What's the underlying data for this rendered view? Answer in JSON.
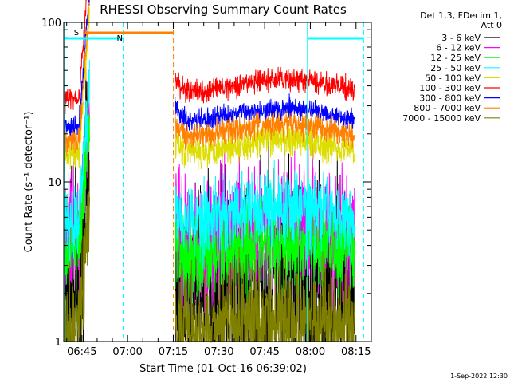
{
  "chart_data": {
    "type": "line",
    "title": "RHESSI Observing Summary Count Rates",
    "xlabel": "Start Time (01-Oct-16 06:39:02)",
    "ylabel": "Count Rate (s⁻¹ detector⁻¹)",
    "yscale": "log",
    "ylim": [
      1,
      100
    ],
    "xlim_minutes": [
      0,
      101
    ],
    "x_ticks": [
      {
        "label": "06:45",
        "minute": 5.97
      },
      {
        "label": "07:00",
        "minute": 20.97
      },
      {
        "label": "07:15",
        "minute": 35.97
      },
      {
        "label": "07:30",
        "minute": 50.97
      },
      {
        "label": "07:45",
        "minute": 65.97
      },
      {
        "label": "08:00",
        "minute": 80.97
      },
      {
        "label": "08:15",
        "minute": 95.97
      }
    ],
    "y_ticks": [
      {
        "label": "1",
        "value": 1
      },
      {
        "label": "10",
        "value": 10
      },
      {
        "label": "100",
        "value": 100
      }
    ],
    "legend_header": [
      "Det 1,3, FDecim 1,",
      "Att 0"
    ],
    "legend_position": "right",
    "series": [
      {
        "name": "3 - 6 keV",
        "color": "#000000",
        "level_before": 2.0,
        "level_after": 2.0,
        "noise": 0.6
      },
      {
        "name": "6 - 12 keV",
        "color": "#ff00ff",
        "level_before": 4.5,
        "level_after": 4.6,
        "noise": 0.35
      },
      {
        "name": "12 - 25 keV",
        "color": "#00ff00",
        "level_before": 3.5,
        "level_after": 3.6,
        "noise": 0.25
      },
      {
        "name": "25 - 50 keV",
        "color": "#00ffff",
        "level_before": 5.8,
        "level_after": 6.0,
        "noise": 0.2
      },
      {
        "name": "50 - 100 keV",
        "color": "#dddd00",
        "level_before": 15,
        "level_after": 16,
        "noise": 0.09
      },
      {
        "name": "100 - 300 keV",
        "color": "#ff0000",
        "level_before": 33,
        "level_after": 38,
        "noise": 0.06
      },
      {
        "name": "300 - 800 keV",
        "color": "#0000ff",
        "level_before": 22,
        "level_after": 25,
        "noise": 0.06
      },
      {
        "name": "800 - 7000 keV",
        "color": "#ff8000",
        "level_before": 18,
        "level_after": 20,
        "noise": 0.07
      },
      {
        "name": "7000 - 15000 keV",
        "color": "#808000",
        "level_before": 1.2,
        "level_after": 1.2,
        "noise": 0.3
      }
    ],
    "gaps_minutes": [
      [
        8.5,
        36.5
      ],
      [
        95.5,
        101
      ]
    ],
    "flags": [
      {
        "label": "S",
        "color": "#ff8000",
        "start_minute": 7.0,
        "end_minute": 36.0
      },
      {
        "label": "N",
        "color": "#00ffff",
        "start_minute": 0.3,
        "end_minute": 19.5
      },
      {
        "label": "",
        "color": "#00ffff",
        "start_minute": 80.0,
        "end_minute": 98.5
      }
    ],
    "vertical_markers": [
      {
        "minute": 0.3,
        "color": "#00ffff",
        "style": "solid"
      },
      {
        "minute": 19.5,
        "color": "#00ffff",
        "style": "dashed"
      },
      {
        "minute": 36.0,
        "color": "#ff8000",
        "style": "dashed"
      },
      {
        "minute": 80.0,
        "color": "#00ffff",
        "style": "solid"
      },
      {
        "minute": 98.5,
        "color": "#00ffff",
        "style": "dashed"
      }
    ],
    "grid": false
  },
  "footer_timestamp": "1-Sep-2022 12:30"
}
